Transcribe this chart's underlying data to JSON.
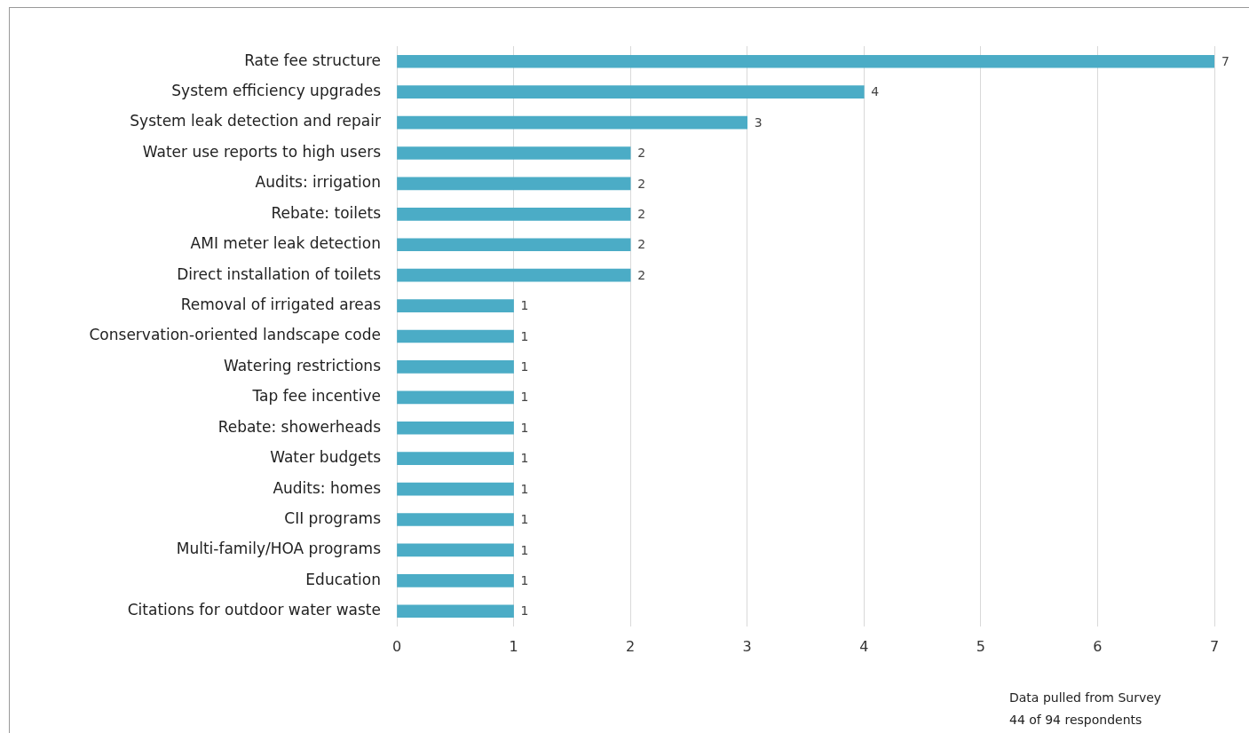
{
  "chart_data": {
    "type": "bar",
    "orientation": "horizontal",
    "categories": [
      "Rate fee structure",
      "System efficiency upgrades",
      "System leak detection and repair",
      "Water use reports to high users",
      "Audits: irrigation",
      "Rebate: toilets",
      "AMI meter leak detection",
      "Direct installation of toilets",
      "Removal of irrigated areas",
      "Conservation-oriented landscape code",
      "Watering restrictions",
      "Tap fee incentive",
      "Rebate: showerheads",
      "Water budgets",
      "Audits: homes",
      "CII programs",
      "Multi-family/HOA programs",
      "Education",
      "Citations for outdoor water waste"
    ],
    "values": [
      7,
      4,
      3,
      2,
      2,
      2,
      2,
      2,
      1,
      1,
      1,
      1,
      1,
      1,
      1,
      1,
      1,
      1,
      1
    ],
    "color": "#4bacc6",
    "xlim": [
      0,
      7
    ],
    "xticks": [
      0,
      1,
      2,
      3,
      4,
      5,
      6,
      7
    ],
    "grid": "x",
    "legend": false,
    "data_labels": true,
    "annotations": [
      "Data pulled from Survey",
      "44 of 94 respondents"
    ]
  }
}
